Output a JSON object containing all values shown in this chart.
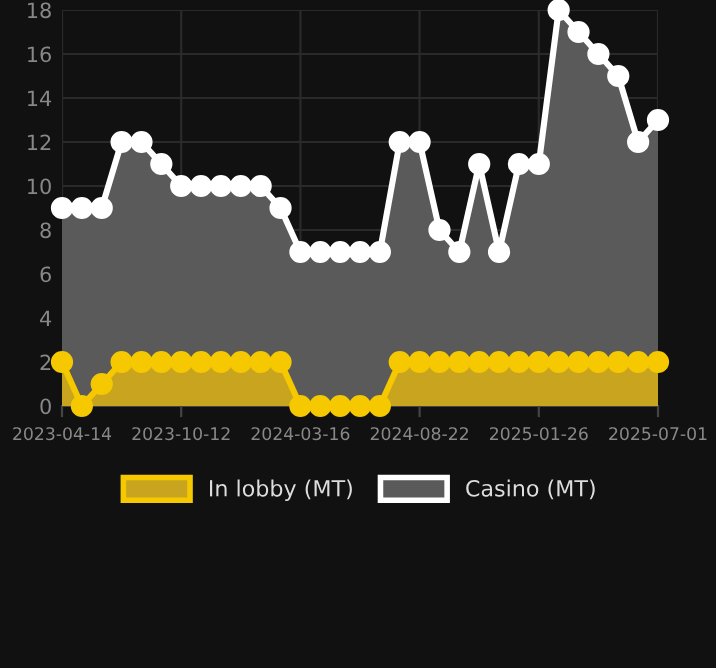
{
  "chart_data": {
    "type": "area",
    "categories": [
      "2023-04-14",
      null,
      null,
      null,
      null,
      null,
      "2023-10-12",
      null,
      null,
      null,
      null,
      null,
      "2024-03-16",
      null,
      null,
      null,
      null,
      null,
      "2024-08-22",
      null,
      null,
      null,
      null,
      null,
      "2025-01-26",
      null,
      null,
      null,
      null,
      null,
      "2025-07-01"
    ],
    "series": [
      {
        "name": "In lobby (MT)",
        "color": "#f5c800",
        "values": [
          2,
          0,
          1,
          2,
          2,
          2,
          2,
          2,
          2,
          2,
          2,
          2,
          0,
          0,
          0,
          0,
          0,
          2,
          2,
          2,
          2,
          2,
          2,
          2,
          2,
          2,
          2,
          2,
          2,
          2,
          2
        ]
      },
      {
        "name": "Casino (MT)",
        "color": "#ffffff",
        "values": [
          9,
          9,
          9,
          12,
          12,
          11,
          10,
          10,
          10,
          10,
          10,
          9,
          7,
          7,
          7,
          7,
          7,
          12,
          12,
          8,
          7,
          11,
          7,
          11,
          11,
          18,
          17,
          16,
          15,
          12,
          13
        ]
      }
    ],
    "ylim": [
      0,
      18
    ],
    "yticks": [
      0,
      2,
      4,
      6,
      8,
      10,
      12,
      14,
      16,
      18
    ],
    "grid": true,
    "legend": "bottom",
    "marker": "circle",
    "line_style": "solid"
  }
}
